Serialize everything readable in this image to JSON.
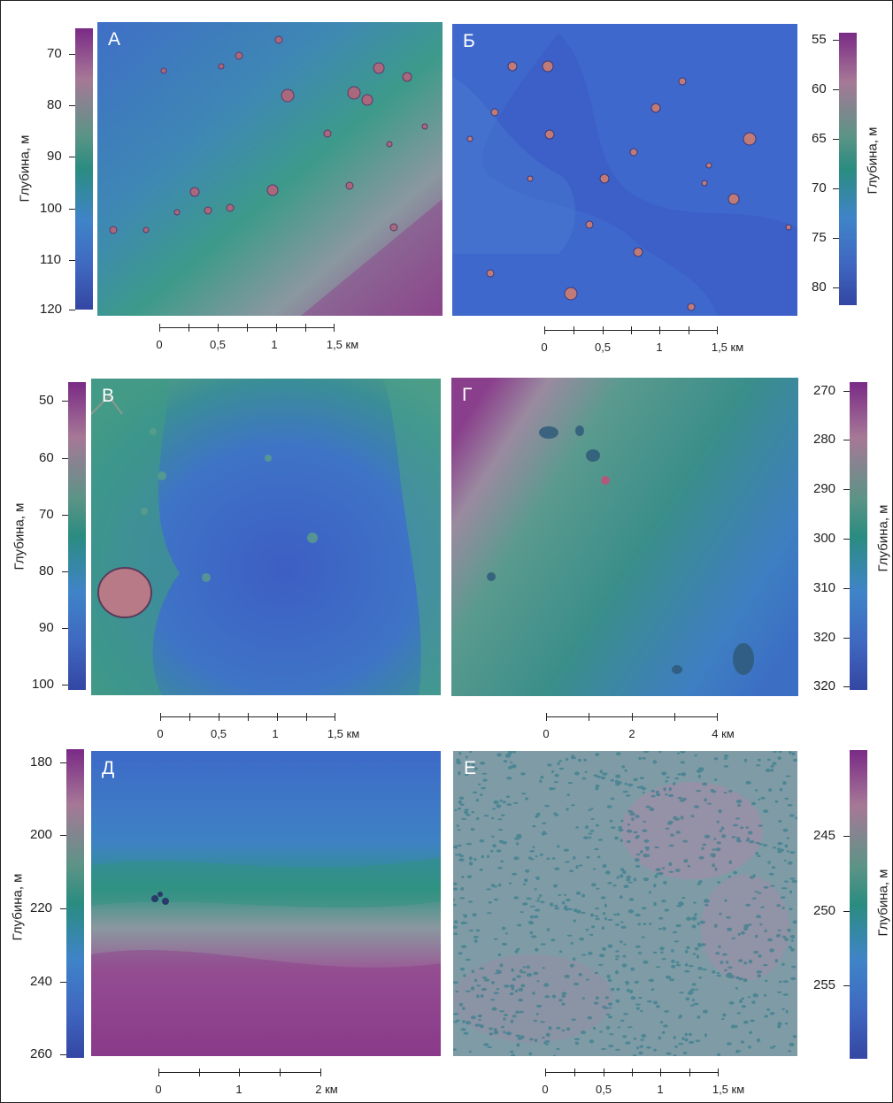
{
  "panels": {
    "a": {
      "letter": "А",
      "axis_label": "Глубина, м",
      "ticks": [
        "70",
        "80",
        "90",
        "100",
        "110",
        "120"
      ],
      "scale": [
        "0",
        "0,5",
        "1",
        "1,5 км"
      ]
    },
    "b": {
      "letter": "Б",
      "axis_label": "Глубина, м",
      "ticks": [
        "55",
        "60",
        "65",
        "70",
        "75",
        "80"
      ],
      "scale": [
        "0",
        "0,5",
        "1",
        "1,5 км"
      ]
    },
    "v": {
      "letter": "В",
      "axis_label": "Глубина, м",
      "ticks": [
        "50",
        "60",
        "70",
        "80",
        "90",
        "100"
      ],
      "scale": [
        "0",
        "0,5",
        "1",
        "1,5 км"
      ]
    },
    "g": {
      "letter": "Г",
      "axis_label": "Глубина, м",
      "ticks": [
        "270",
        "280",
        "290",
        "300",
        "310",
        "320",
        "320"
      ],
      "scale": [
        "0",
        "2",
        "4 км"
      ]
    },
    "d": {
      "letter": "Д",
      "axis_label": "Глубина, м",
      "ticks": [
        "180",
        "200",
        "220",
        "240",
        "260"
      ],
      "scale": [
        "0",
        "1",
        "2 км"
      ]
    },
    "e": {
      "letter": "Е",
      "axis_label": "Глубина, м",
      "ticks": [
        "245",
        "250",
        "255"
      ],
      "scale": [
        "0",
        "0,5",
        "1",
        "1,5 км"
      ]
    }
  },
  "colors": {
    "shallow": "#7a2a86",
    "mid": "#2a8c80",
    "deep": "#3346a3"
  }
}
